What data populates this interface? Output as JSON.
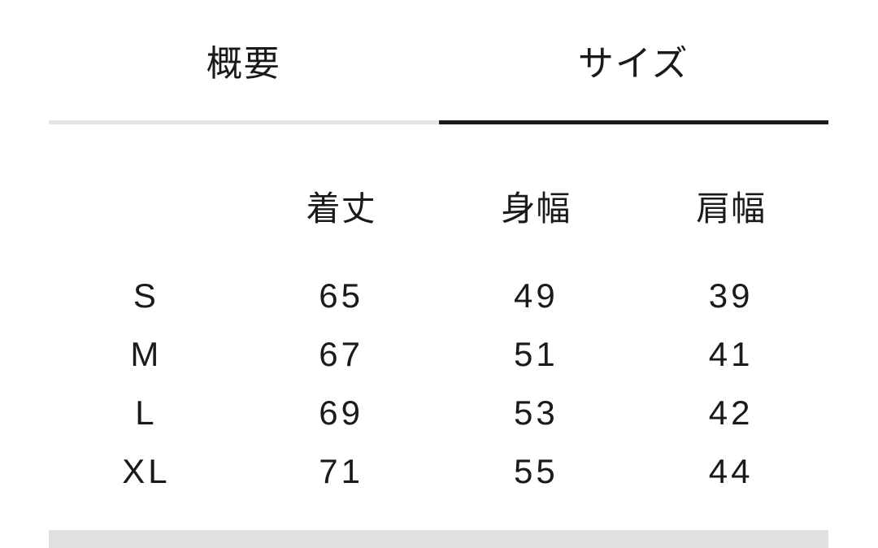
{
  "tabs": [
    {
      "label": "概要",
      "active": false
    },
    {
      "label": "サイズ",
      "active": true
    }
  ],
  "size_table": {
    "columns": [
      "着丈",
      "身幅",
      "肩幅"
    ],
    "rows": [
      {
        "size": "S",
        "values": [
          65,
          49,
          39
        ]
      },
      {
        "size": "M",
        "values": [
          67,
          51,
          41
        ]
      },
      {
        "size": "L",
        "values": [
          69,
          53,
          42
        ]
      },
      {
        "size": "XL",
        "values": [
          71,
          55,
          44
        ]
      }
    ]
  },
  "colors": {
    "text": "#1a1a1a",
    "active_tab_underline": "#1b1b1b",
    "inactive_tab_underline": "#e4e4e4",
    "bottom_divider": "#e0e0e0",
    "background": "#ffffff"
  }
}
